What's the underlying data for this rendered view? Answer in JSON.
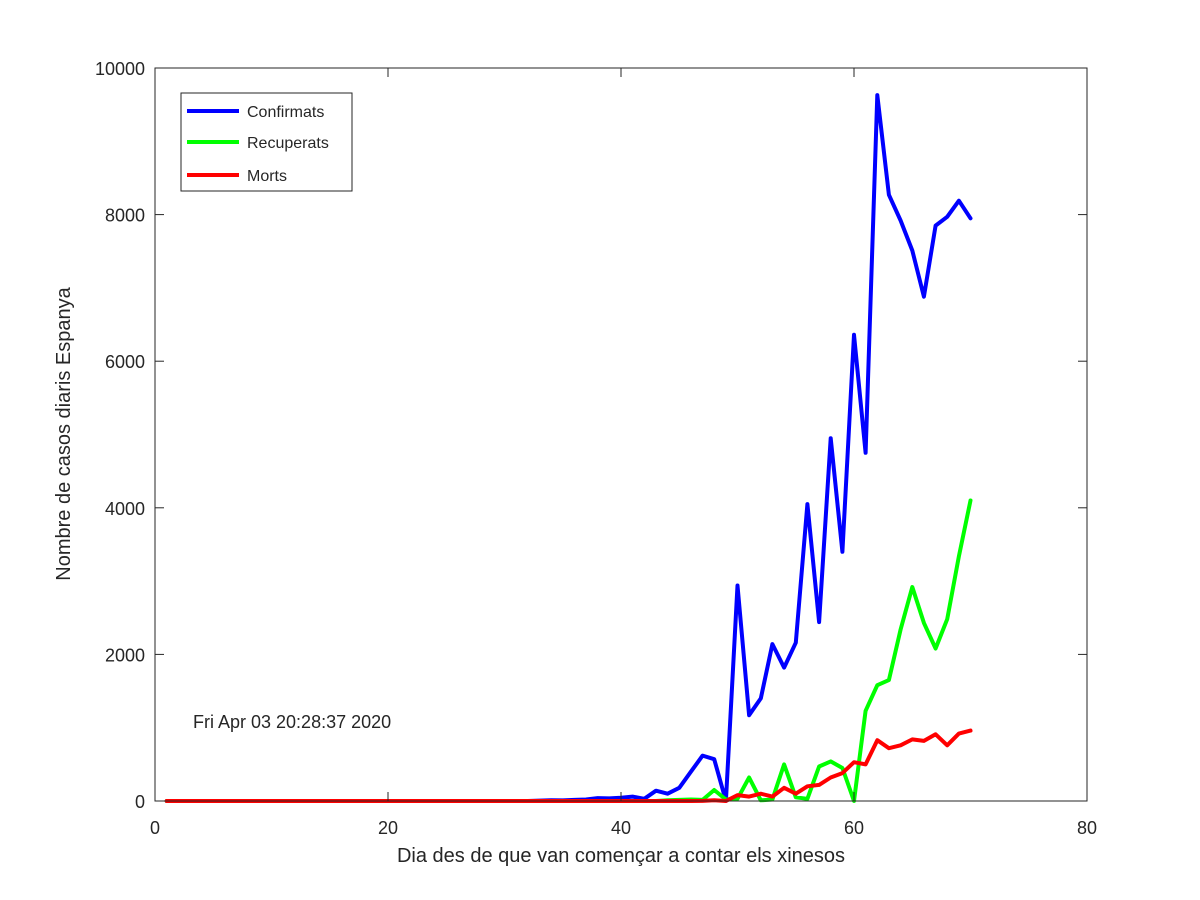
{
  "chart_data": {
    "type": "line",
    "title": "",
    "xlabel": "Dia des de que van començar a contar els xinesos",
    "ylabel": "Nombre de casos diaris Espanya",
    "xlim": [
      0,
      80
    ],
    "ylim": [
      0,
      10000
    ],
    "xticks": [
      0,
      20,
      40,
      60,
      80
    ],
    "yticks": [
      0,
      2000,
      4000,
      6000,
      8000,
      10000
    ],
    "grid": false,
    "legend_position": "top-left",
    "annotation": "Fri Apr 03 20:28:37 2020",
    "series": [
      {
        "name": "Confirmats",
        "color": "#0000ff",
        "x": [
          1,
          2,
          3,
          4,
          5,
          6,
          7,
          8,
          9,
          10,
          11,
          12,
          13,
          14,
          15,
          16,
          17,
          18,
          19,
          20,
          21,
          22,
          23,
          24,
          25,
          26,
          27,
          28,
          29,
          30,
          31,
          32,
          33,
          34,
          35,
          36,
          37,
          38,
          39,
          40,
          41,
          42,
          43,
          44,
          45,
          46,
          47,
          48,
          49,
          50,
          51,
          52,
          53,
          54,
          55,
          56,
          57,
          58,
          59,
          60,
          61,
          62,
          63,
          64,
          65,
          66,
          67,
          68,
          69,
          70
        ],
        "values": [
          0,
          0,
          0,
          0,
          0,
          0,
          0,
          0,
          0,
          0,
          0,
          0,
          0,
          0,
          0,
          0,
          0,
          0,
          0,
          0,
          0,
          0,
          0,
          0,
          0,
          0,
          0,
          0,
          0,
          0,
          0,
          0,
          5,
          10,
          8,
          15,
          20,
          40,
          35,
          45,
          60,
          30,
          140,
          100,
          180,
          400,
          620,
          570,
          0,
          2940,
          1170,
          1400,
          2140,
          1820,
          2160,
          4050,
          2440,
          4950,
          3400,
          6360,
          4750,
          9630,
          8270,
          7920,
          7510,
          6880,
          7850,
          7970,
          8190,
          7950
        ]
      },
      {
        "name": "Recuperats",
        "color": "#00ff00",
        "x": [
          1,
          2,
          3,
          4,
          5,
          6,
          7,
          8,
          9,
          10,
          11,
          12,
          13,
          14,
          15,
          16,
          17,
          18,
          19,
          20,
          21,
          22,
          23,
          24,
          25,
          26,
          27,
          28,
          29,
          30,
          31,
          32,
          33,
          34,
          35,
          36,
          37,
          38,
          39,
          40,
          41,
          42,
          43,
          44,
          45,
          46,
          47,
          48,
          49,
          50,
          51,
          52,
          53,
          54,
          55,
          56,
          57,
          58,
          59,
          60,
          61,
          62,
          63,
          64,
          65,
          66,
          67,
          68,
          69,
          70
        ],
        "values": [
          0,
          0,
          0,
          0,
          0,
          0,
          0,
          0,
          0,
          0,
          0,
          0,
          0,
          0,
          0,
          0,
          0,
          0,
          0,
          0,
          0,
          0,
          0,
          0,
          0,
          0,
          0,
          0,
          0,
          0,
          0,
          0,
          0,
          0,
          0,
          0,
          0,
          0,
          0,
          0,
          0,
          0,
          0,
          10,
          15,
          20,
          15,
          150,
          20,
          30,
          320,
          10,
          20,
          500,
          50,
          30,
          470,
          540,
          450,
          0,
          1230,
          1580,
          1650,
          2340,
          2920,
          2430,
          2080,
          2480,
          3340,
          4100
        ]
      },
      {
        "name": "Morts",
        "color": "#ff0000",
        "x": [
          1,
          2,
          3,
          4,
          5,
          6,
          7,
          8,
          9,
          10,
          11,
          12,
          13,
          14,
          15,
          16,
          17,
          18,
          19,
          20,
          21,
          22,
          23,
          24,
          25,
          26,
          27,
          28,
          29,
          30,
          31,
          32,
          33,
          34,
          35,
          36,
          37,
          38,
          39,
          40,
          41,
          42,
          43,
          44,
          45,
          46,
          47,
          48,
          49,
          50,
          51,
          52,
          53,
          54,
          55,
          56,
          57,
          58,
          59,
          60,
          61,
          62,
          63,
          64,
          65,
          66,
          67,
          68,
          69,
          70
        ],
        "values": [
          0,
          0,
          0,
          0,
          0,
          0,
          0,
          0,
          0,
          0,
          0,
          0,
          0,
          0,
          0,
          0,
          0,
          0,
          0,
          0,
          0,
          0,
          0,
          0,
          0,
          0,
          0,
          0,
          0,
          0,
          0,
          0,
          0,
          0,
          0,
          0,
          0,
          0,
          0,
          0,
          0,
          0,
          0,
          0,
          0,
          0,
          2,
          10,
          0,
          80,
          60,
          100,
          60,
          180,
          100,
          200,
          220,
          320,
          380,
          530,
          500,
          830,
          720,
          760,
          840,
          820,
          910,
          760,
          920,
          960
        ]
      }
    ]
  }
}
